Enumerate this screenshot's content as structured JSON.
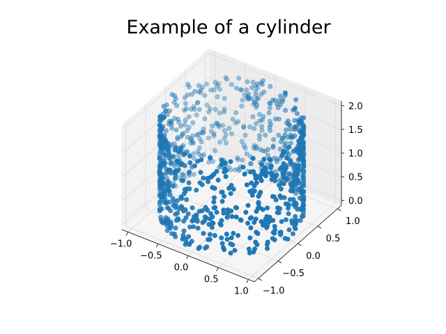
{
  "chart_data": {
    "type": "scatter",
    "subtype": "3d",
    "title": "Example of a cylinder",
    "xlabel": "",
    "ylabel": "",
    "zlabel": "",
    "xlim": [
      -1.1,
      1.1
    ],
    "ylim": [
      -1.1,
      1.1
    ],
    "zlim": [
      -0.1,
      2.1
    ],
    "x_ticks": [
      "−1.0",
      "−0.5",
      "0.0",
      "0.5",
      "1.0"
    ],
    "y_ticks": [
      "−1.0",
      "−0.5",
      "0.0",
      "0.5",
      "1.0"
    ],
    "z_ticks": [
      "0.0",
      "0.5",
      "1.0",
      "1.5",
      "2.0"
    ],
    "grid": true,
    "marker_color": "#1f77b4",
    "series": [
      {
        "shape": "cylinder surface",
        "radius": 1.0,
        "z_range": [
          0.0,
          2.0
        ],
        "point_count": 1000
      }
    ]
  }
}
